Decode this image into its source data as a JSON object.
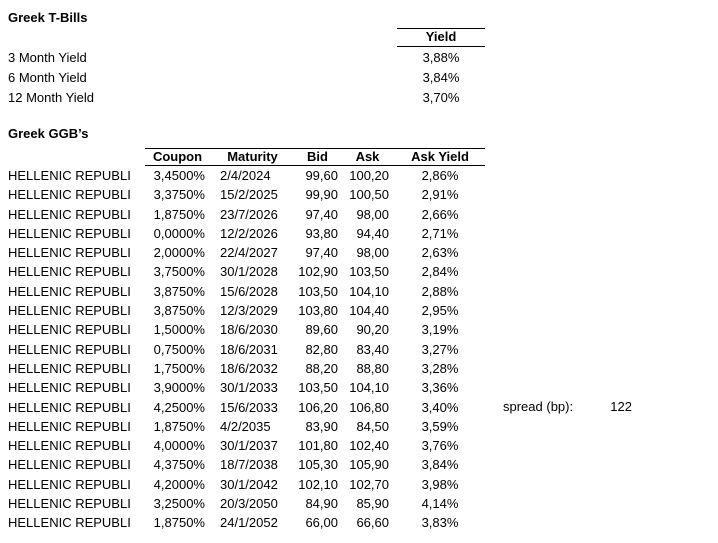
{
  "tbills": {
    "title": "Greek T-Bills",
    "yield_header": "Yield",
    "rows": [
      {
        "label": "3 Month Yield",
        "value": "3,88%"
      },
      {
        "label": "6 Month Yield",
        "value": "3,84%"
      },
      {
        "label": "12 Month Yield",
        "value": "3,70%"
      }
    ]
  },
  "ggb": {
    "title": "Greek GGB’s",
    "headers": {
      "coupon": "Coupon",
      "maturity": "Maturity",
      "bid": "Bid",
      "ask": "Ask",
      "ask_yield": "Ask Yield"
    },
    "rows": [
      {
        "name": "HELLENIC REPUBLI",
        "coupon": "3,4500%",
        "maturity": "2/4/2024",
        "bid": "99,60",
        "ask": "100,20",
        "ask_yield": "2,86%"
      },
      {
        "name": "HELLENIC REPUBLI",
        "coupon": "3,3750%",
        "maturity": "15/2/2025",
        "bid": "99,90",
        "ask": "100,50",
        "ask_yield": "2,91%"
      },
      {
        "name": "HELLENIC REPUBLI",
        "coupon": "1,8750%",
        "maturity": "23/7/2026",
        "bid": "97,40",
        "ask": "98,00",
        "ask_yield": "2,66%"
      },
      {
        "name": "HELLENIC REPUBLI",
        "coupon": "0,0000%",
        "maturity": "12/2/2026",
        "bid": "93,80",
        "ask": "94,40",
        "ask_yield": "2,71%"
      },
      {
        "name": "HELLENIC REPUBLI",
        "coupon": "2,0000%",
        "maturity": "22/4/2027",
        "bid": "97,40",
        "ask": "98,00",
        "ask_yield": "2,63%"
      },
      {
        "name": "HELLENIC REPUBLI",
        "coupon": "3,7500%",
        "maturity": "30/1/2028",
        "bid": "102,90",
        "ask": "103,50",
        "ask_yield": "2,84%"
      },
      {
        "name": "HELLENIC REPUBLI",
        "coupon": "3,8750%",
        "maturity": "15/6/2028",
        "bid": "103,50",
        "ask": "104,10",
        "ask_yield": "2,88%"
      },
      {
        "name": "HELLENIC REPUBLI",
        "coupon": "3,8750%",
        "maturity": "12/3/2029",
        "bid": "103,80",
        "ask": "104,40",
        "ask_yield": "2,95%"
      },
      {
        "name": "HELLENIC REPUBLI",
        "coupon": "1,5000%",
        "maturity": "18/6/2030",
        "bid": "89,60",
        "ask": "90,20",
        "ask_yield": "3,19%"
      },
      {
        "name": "HELLENIC REPUBLI",
        "coupon": "0,7500%",
        "maturity": "18/6/2031",
        "bid": "82,80",
        "ask": "83,40",
        "ask_yield": "3,27%"
      },
      {
        "name": "HELLENIC REPUBLI",
        "coupon": "1,7500%",
        "maturity": "18/6/2032",
        "bid": "88,20",
        "ask": "88,80",
        "ask_yield": "3,28%"
      },
      {
        "name": "HELLENIC REPUBLI",
        "coupon": "3,9000%",
        "maturity": "30/1/2033",
        "bid": "103,50",
        "ask": "104,10",
        "ask_yield": "3,36%"
      },
      {
        "name": "HELLENIC REPUBLI",
        "coupon": "4,2500%",
        "maturity": "15/6/2033",
        "bid": "106,20",
        "ask": "106,80",
        "ask_yield": "3,40%"
      },
      {
        "name": "HELLENIC REPUBLI",
        "coupon": "1,8750%",
        "maturity": "4/2/2035",
        "bid": "83,90",
        "ask": "84,50",
        "ask_yield": "3,59%"
      },
      {
        "name": "HELLENIC REPUBLI",
        "coupon": "4,0000%",
        "maturity": "30/1/2037",
        "bid": "101,80",
        "ask": "102,40",
        "ask_yield": "3,76%"
      },
      {
        "name": "HELLENIC REPUBLI",
        "coupon": "4,3750%",
        "maturity": "18/7/2038",
        "bid": "105,30",
        "ask": "105,90",
        "ask_yield": "3,84%"
      },
      {
        "name": "HELLENIC REPUBLI",
        "coupon": "4,2000%",
        "maturity": "30/1/2042",
        "bid": "102,10",
        "ask": "102,70",
        "ask_yield": "3,98%"
      },
      {
        "name": "HELLENIC REPUBLI",
        "coupon": "3,2500%",
        "maturity": "20/3/2050",
        "bid": "84,90",
        "ask": "85,90",
        "ask_yield": "4,14%"
      },
      {
        "name": "HELLENIC REPUBLI",
        "coupon": "1,8750%",
        "maturity": "24/1/2052",
        "bid": "66,00",
        "ask": "66,60",
        "ask_yield": "3,83%"
      }
    ],
    "spread": {
      "label": "spread (bp):",
      "value": "122",
      "aligned_row_index": 12
    }
  }
}
